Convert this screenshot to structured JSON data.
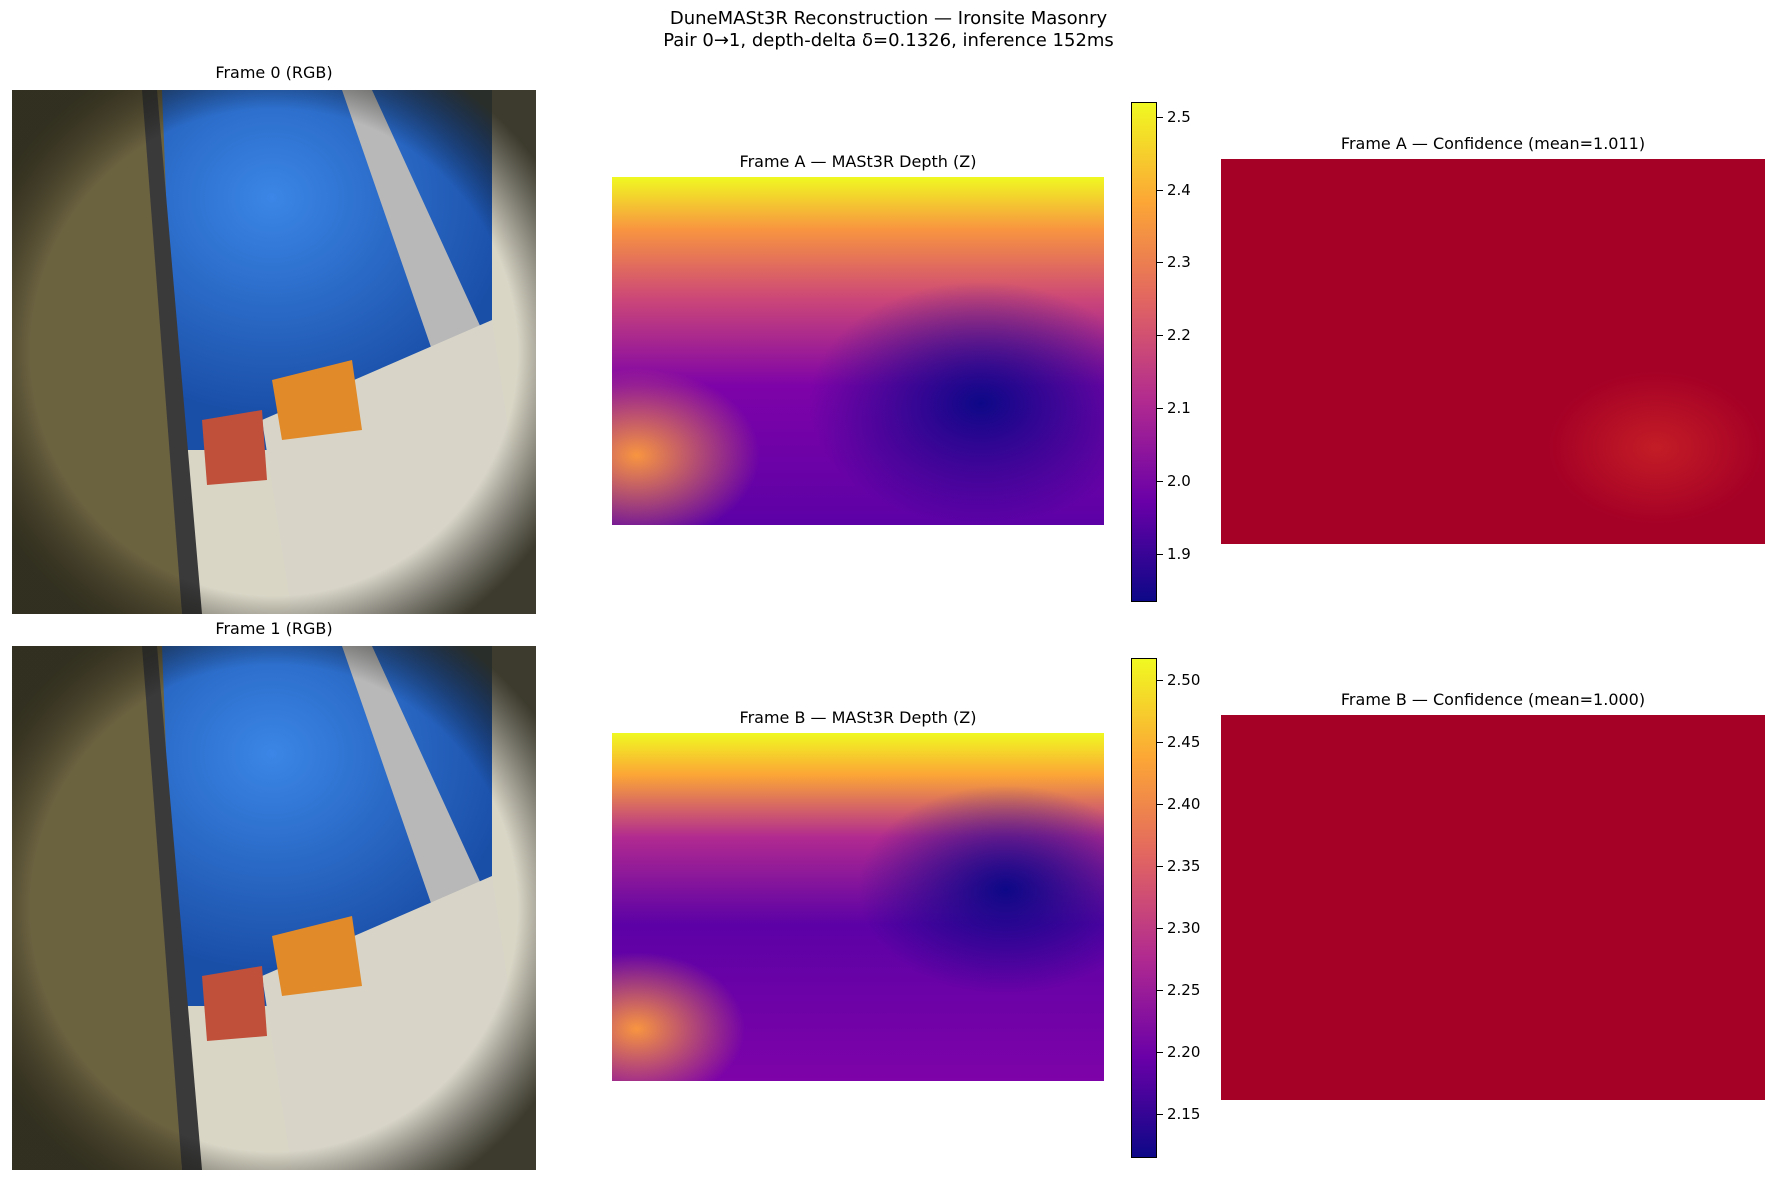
{
  "suptitle": {
    "line1": "DuneMASt3R Reconstruction — Ironsite Masonry",
    "line2": "Pair 0→1, depth-delta δ=0.1326, inference 152ms"
  },
  "panels": {
    "rgb0_title": "Frame 0 (RGB)",
    "rgb1_title": "Frame 1 (RGB)",
    "depthA_title": "Frame A — MASt3R Depth (Z)",
    "depthB_title": "Frame B — MASt3R Depth (Z)",
    "confA_title": "Frame A — Confidence (mean=1.011)",
    "confB_title": "Frame B — Confidence (mean=1.000)"
  },
  "colorbarA": {
    "colormap": "plasma",
    "ticks": [
      "1.9",
      "2.0",
      "2.1",
      "2.2",
      "2.3",
      "2.4",
      "2.5"
    ],
    "range": [
      1.83,
      2.52
    ]
  },
  "colorbarB": {
    "colormap": "plasma",
    "ticks": [
      "2.15",
      "2.20",
      "2.25",
      "2.30",
      "2.35",
      "2.40",
      "2.45",
      "2.50"
    ],
    "range": [
      2.11,
      2.52
    ]
  },
  "colors": {
    "confidence_fill": "#a50026",
    "plasma_low": "#0d0887",
    "plasma_high": "#f0f921"
  }
}
